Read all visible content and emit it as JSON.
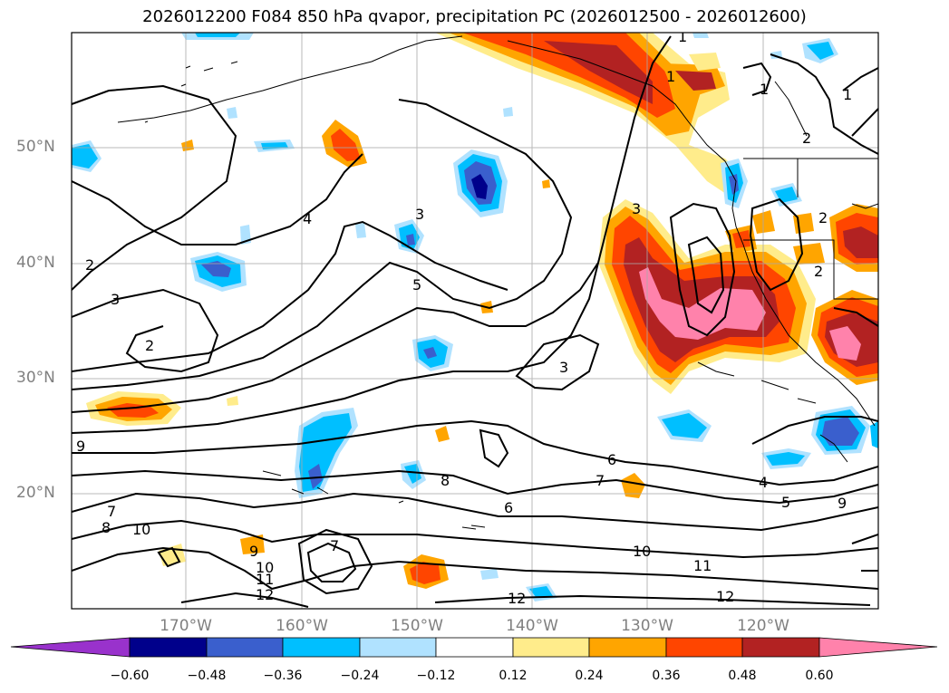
{
  "title": "2026012200 F084 850 hPa qvapor, precipitation PC (2026012500 - 2026012600)",
  "map": {
    "lat_labels": [
      "50°N",
      "40°N",
      "30°N",
      "20°N"
    ],
    "lon_labels": [
      "170°W",
      "160°W",
      "150°W",
      "140°W",
      "130°W",
      "120°W"
    ],
    "contour_labels": [
      "1",
      "1",
      "1",
      "1",
      "2",
      "2",
      "2",
      "2",
      "2",
      "3",
      "3",
      "3",
      "3",
      "4",
      "4",
      "5",
      "5",
      "6",
      "6",
      "7",
      "7",
      "7",
      "8",
      "8",
      "9",
      "9",
      "9",
      "10",
      "10",
      "10",
      "11",
      "11",
      "12",
      "12",
      "12"
    ]
  },
  "colorbar": {
    "ticks": [
      "−0.60",
      "−0.48",
      "−0.36",
      "−0.24",
      "−0.12",
      "0.12",
      "0.24",
      "0.36",
      "0.48",
      "0.60"
    ],
    "colors": [
      "#9932cc",
      "#00008b",
      "#3a5fcd",
      "#00bfff",
      "#b0e2ff",
      "#ffffff",
      "#ffec8b",
      "#ffa500",
      "#ff4500",
      "#b22222",
      "#ff82ab"
    ]
  }
}
